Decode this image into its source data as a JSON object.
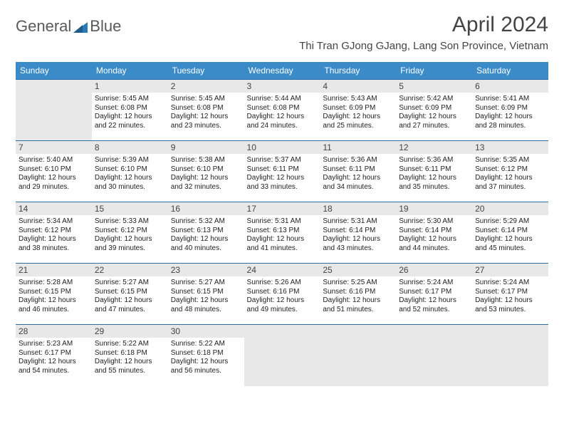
{
  "logo": {
    "word1": "General",
    "word2": "Blue"
  },
  "title": "April 2024",
  "location": "Thi Tran GJong GJang, Lang Son Province, Vietnam",
  "header_bg": "#3b8bc9",
  "header_text_color": "#ffffff",
  "daynum_bg": "#e8e8e8",
  "border_color": "#2a6fa8",
  "logo_gray": "#5a5a5a",
  "logo_blue": "#2a7ab8",
  "day_headers": [
    "Sunday",
    "Monday",
    "Tuesday",
    "Wednesday",
    "Thursday",
    "Friday",
    "Saturday"
  ],
  "weeks": [
    [
      null,
      {
        "n": "1",
        "sr": "Sunrise: 5:45 AM",
        "ss": "Sunset: 6:08 PM",
        "d1": "Daylight: 12 hours",
        "d2": "and 22 minutes."
      },
      {
        "n": "2",
        "sr": "Sunrise: 5:45 AM",
        "ss": "Sunset: 6:08 PM",
        "d1": "Daylight: 12 hours",
        "d2": "and 23 minutes."
      },
      {
        "n": "3",
        "sr": "Sunrise: 5:44 AM",
        "ss": "Sunset: 6:08 PM",
        "d1": "Daylight: 12 hours",
        "d2": "and 24 minutes."
      },
      {
        "n": "4",
        "sr": "Sunrise: 5:43 AM",
        "ss": "Sunset: 6:09 PM",
        "d1": "Daylight: 12 hours",
        "d2": "and 25 minutes."
      },
      {
        "n": "5",
        "sr": "Sunrise: 5:42 AM",
        "ss": "Sunset: 6:09 PM",
        "d1": "Daylight: 12 hours",
        "d2": "and 27 minutes."
      },
      {
        "n": "6",
        "sr": "Sunrise: 5:41 AM",
        "ss": "Sunset: 6:09 PM",
        "d1": "Daylight: 12 hours",
        "d2": "and 28 minutes."
      }
    ],
    [
      {
        "n": "7",
        "sr": "Sunrise: 5:40 AM",
        "ss": "Sunset: 6:10 PM",
        "d1": "Daylight: 12 hours",
        "d2": "and 29 minutes."
      },
      {
        "n": "8",
        "sr": "Sunrise: 5:39 AM",
        "ss": "Sunset: 6:10 PM",
        "d1": "Daylight: 12 hours",
        "d2": "and 30 minutes."
      },
      {
        "n": "9",
        "sr": "Sunrise: 5:38 AM",
        "ss": "Sunset: 6:10 PM",
        "d1": "Daylight: 12 hours",
        "d2": "and 32 minutes."
      },
      {
        "n": "10",
        "sr": "Sunrise: 5:37 AM",
        "ss": "Sunset: 6:11 PM",
        "d1": "Daylight: 12 hours",
        "d2": "and 33 minutes."
      },
      {
        "n": "11",
        "sr": "Sunrise: 5:36 AM",
        "ss": "Sunset: 6:11 PM",
        "d1": "Daylight: 12 hours",
        "d2": "and 34 minutes."
      },
      {
        "n": "12",
        "sr": "Sunrise: 5:36 AM",
        "ss": "Sunset: 6:11 PM",
        "d1": "Daylight: 12 hours",
        "d2": "and 35 minutes."
      },
      {
        "n": "13",
        "sr": "Sunrise: 5:35 AM",
        "ss": "Sunset: 6:12 PM",
        "d1": "Daylight: 12 hours",
        "d2": "and 37 minutes."
      }
    ],
    [
      {
        "n": "14",
        "sr": "Sunrise: 5:34 AM",
        "ss": "Sunset: 6:12 PM",
        "d1": "Daylight: 12 hours",
        "d2": "and 38 minutes."
      },
      {
        "n": "15",
        "sr": "Sunrise: 5:33 AM",
        "ss": "Sunset: 6:12 PM",
        "d1": "Daylight: 12 hours",
        "d2": "and 39 minutes."
      },
      {
        "n": "16",
        "sr": "Sunrise: 5:32 AM",
        "ss": "Sunset: 6:13 PM",
        "d1": "Daylight: 12 hours",
        "d2": "and 40 minutes."
      },
      {
        "n": "17",
        "sr": "Sunrise: 5:31 AM",
        "ss": "Sunset: 6:13 PM",
        "d1": "Daylight: 12 hours",
        "d2": "and 41 minutes."
      },
      {
        "n": "18",
        "sr": "Sunrise: 5:31 AM",
        "ss": "Sunset: 6:14 PM",
        "d1": "Daylight: 12 hours",
        "d2": "and 43 minutes."
      },
      {
        "n": "19",
        "sr": "Sunrise: 5:30 AM",
        "ss": "Sunset: 6:14 PM",
        "d1": "Daylight: 12 hours",
        "d2": "and 44 minutes."
      },
      {
        "n": "20",
        "sr": "Sunrise: 5:29 AM",
        "ss": "Sunset: 6:14 PM",
        "d1": "Daylight: 12 hours",
        "d2": "and 45 minutes."
      }
    ],
    [
      {
        "n": "21",
        "sr": "Sunrise: 5:28 AM",
        "ss": "Sunset: 6:15 PM",
        "d1": "Daylight: 12 hours",
        "d2": "and 46 minutes."
      },
      {
        "n": "22",
        "sr": "Sunrise: 5:27 AM",
        "ss": "Sunset: 6:15 PM",
        "d1": "Daylight: 12 hours",
        "d2": "and 47 minutes."
      },
      {
        "n": "23",
        "sr": "Sunrise: 5:27 AM",
        "ss": "Sunset: 6:15 PM",
        "d1": "Daylight: 12 hours",
        "d2": "and 48 minutes."
      },
      {
        "n": "24",
        "sr": "Sunrise: 5:26 AM",
        "ss": "Sunset: 6:16 PM",
        "d1": "Daylight: 12 hours",
        "d2": "and 49 minutes."
      },
      {
        "n": "25",
        "sr": "Sunrise: 5:25 AM",
        "ss": "Sunset: 6:16 PM",
        "d1": "Daylight: 12 hours",
        "d2": "and 51 minutes."
      },
      {
        "n": "26",
        "sr": "Sunrise: 5:24 AM",
        "ss": "Sunset: 6:17 PM",
        "d1": "Daylight: 12 hours",
        "d2": "and 52 minutes."
      },
      {
        "n": "27",
        "sr": "Sunrise: 5:24 AM",
        "ss": "Sunset: 6:17 PM",
        "d1": "Daylight: 12 hours",
        "d2": "and 53 minutes."
      }
    ],
    [
      {
        "n": "28",
        "sr": "Sunrise: 5:23 AM",
        "ss": "Sunset: 6:17 PM",
        "d1": "Daylight: 12 hours",
        "d2": "and 54 minutes."
      },
      {
        "n": "29",
        "sr": "Sunrise: 5:22 AM",
        "ss": "Sunset: 6:18 PM",
        "d1": "Daylight: 12 hours",
        "d2": "and 55 minutes."
      },
      {
        "n": "30",
        "sr": "Sunrise: 5:22 AM",
        "ss": "Sunset: 6:18 PM",
        "d1": "Daylight: 12 hours",
        "d2": "and 56 minutes."
      },
      null,
      null,
      null,
      null
    ]
  ]
}
